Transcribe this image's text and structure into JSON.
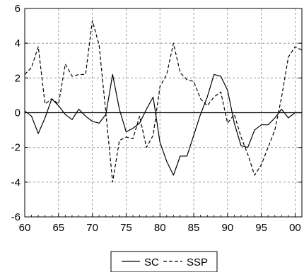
{
  "chart_data": {
    "type": "line",
    "title": "",
    "xlabel": "",
    "ylabel": "",
    "xlim": [
      1960,
      2001
    ],
    "ylim": [
      -6,
      6
    ],
    "x_ticks": [
      1960,
      1965,
      1970,
      1975,
      1980,
      1985,
      1990,
      1995,
      2000
    ],
    "x_tick_labels": [
      "60",
      "65",
      "70",
      "75",
      "80",
      "85",
      "90",
      "95",
      "00"
    ],
    "y_ticks": [
      -6,
      -4,
      -2,
      0,
      2,
      4,
      6
    ],
    "y_tick_labels": [
      "-6",
      "-4",
      "-2",
      "0",
      "2",
      "4",
      "6"
    ],
    "grid": "dashed",
    "zero_line": true,
    "legend_placement": "bottom-center",
    "x": [
      1960,
      1961,
      1962,
      1963,
      1964,
      1965,
      1966,
      1967,
      1968,
      1969,
      1970,
      1971,
      1972,
      1973,
      1974,
      1975,
      1976,
      1977,
      1978,
      1979,
      1980,
      1981,
      1982,
      1983,
      1984,
      1985,
      1986,
      1987,
      1988,
      1989,
      1990,
      1991,
      1992,
      1993,
      1994,
      1995,
      1996,
      1997,
      1998,
      1999,
      2000,
      2001
    ],
    "series": [
      {
        "name": "SC",
        "style": "solid",
        "values": [
          0.1,
          -0.2,
          -1.2,
          -0.3,
          0.8,
          0.4,
          -0.1,
          -0.4,
          0.2,
          -0.2,
          -0.5,
          -0.6,
          -0.1,
          2.2,
          0.2,
          -1.1,
          -0.9,
          -0.6,
          0.2,
          0.9,
          -1.7,
          -2.8,
          -3.6,
          -2.5,
          -2.5,
          -1.3,
          -0.1,
          0.9,
          2.2,
          2.1,
          1.3,
          -0.6,
          -1.9,
          -2.0,
          -1.0,
          -0.7,
          -0.7,
          -0.3,
          0.2,
          -0.3,
          0.0,
          0.0
        ]
      },
      {
        "name": "SSP",
        "style": "dashed",
        "values": [
          2.2,
          2.6,
          3.8,
          0.5,
          0.8,
          0.5,
          2.8,
          2.1,
          2.2,
          2.2,
          5.3,
          3.9,
          0.0,
          -4.0,
          -1.6,
          -1.4,
          -1.5,
          -0.2,
          -2.0,
          -1.3,
          1.5,
          2.2,
          4.0,
          2.3,
          1.9,
          1.8,
          0.8,
          0.4,
          0.9,
          1.2,
          -0.6,
          -0.1,
          -1.4,
          -2.4,
          -3.6,
          -3.0,
          -2.0,
          -1.0,
          0.9,
          3.2,
          3.8,
          3.6
        ]
      }
    ],
    "legend": {
      "sc_label": "SC",
      "ssp_label": "SSP"
    }
  }
}
